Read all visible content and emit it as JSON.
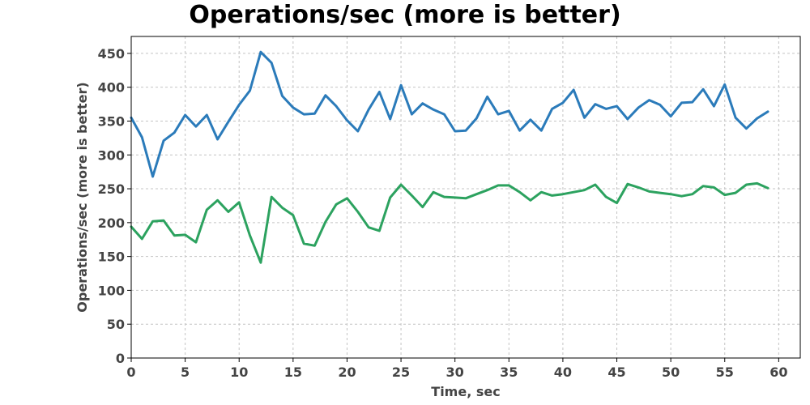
{
  "chart_data": {
    "type": "line",
    "title": "Operations/sec (more is better)",
    "xlabel": "Time, sec",
    "ylabel": "Operations/sec (more is better)",
    "xlim": [
      0,
      62
    ],
    "ylim": [
      0,
      475
    ],
    "xticks": [
      0,
      5,
      10,
      15,
      20,
      25,
      30,
      35,
      40,
      45,
      50,
      55,
      60
    ],
    "yticks": [
      0,
      50,
      100,
      150,
      200,
      250,
      300,
      350,
      400,
      450
    ],
    "grid": true,
    "x": [
      0,
      1,
      2,
      3,
      4,
      5,
      6,
      7,
      8,
      9,
      10,
      11,
      12,
      13,
      14,
      15,
      16,
      17,
      18,
      19,
      20,
      21,
      22,
      23,
      24,
      25,
      26,
      27,
      28,
      29,
      30,
      31,
      32,
      33,
      34,
      35,
      36,
      37,
      38,
      39,
      40,
      41,
      42,
      43,
      44,
      45,
      46,
      47,
      48,
      49,
      50,
      51,
      52,
      53,
      54,
      55,
      56,
      57,
      58,
      59
    ],
    "series": [
      {
        "color": "#2b7bba",
        "values": [
          355,
          326,
          268,
          321,
          333,
          359,
          342,
          359,
          323,
          349,
          374,
          395,
          452,
          436,
          387,
          370,
          360,
          361,
          388,
          372,
          351,
          335,
          367,
          393,
          353,
          403,
          360,
          376,
          367,
          360,
          335,
          336,
          354,
          386,
          360,
          365,
          336,
          352,
          336,
          368,
          377,
          396,
          355,
          375,
          368,
          372,
          353,
          370,
          381,
          374,
          357,
          377,
          378,
          397,
          372,
          404,
          355,
          339,
          354,
          364
        ]
      },
      {
        "color": "#2ca25f",
        "values": [
          194,
          176,
          202,
          203,
          181,
          182,
          171,
          219,
          233,
          216,
          230,
          181,
          141,
          238,
          222,
          211,
          169,
          166,
          201,
          227,
          236,
          216,
          193,
          188,
          237,
          256,
          240,
          223,
          245,
          238,
          237,
          236,
          242,
          248,
          255,
          255,
          245,
          233,
          245,
          240,
          242,
          245,
          248,
          256,
          238,
          229,
          257,
          252,
          246,
          244,
          242,
          239,
          242,
          254,
          252,
          241,
          244,
          256,
          258,
          251
        ]
      }
    ]
  }
}
